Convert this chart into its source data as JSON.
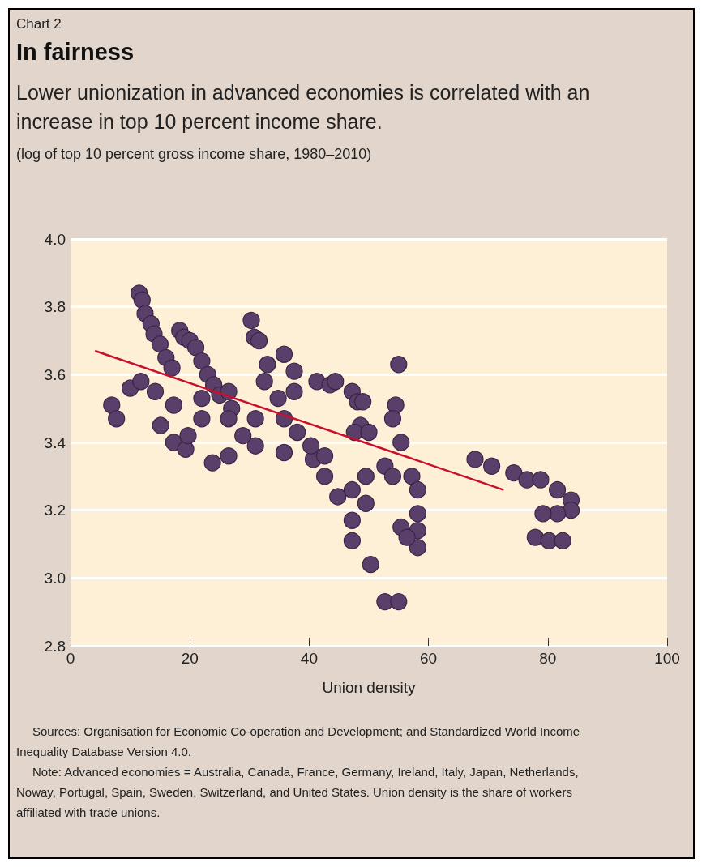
{
  "chart_data": {
    "type": "scatter",
    "title": "In fairness",
    "subtitle": "Lower unionization in advanced economies is correlated with an increase in top 10 percent income share.",
    "ylabel": "(log of top 10 percent gross income share, 1980–2010)",
    "xlabel": "Union density",
    "annotations": [
      "Chart 2",
      "Sources: Organisation for Economic Co-operation and Development; and Standardized World Income Inequality Database Version 4.0.",
      "Note: Advanced economies = Australia, Canada, France, Germany, Ireland, Italy, Japan, Netherlands, Noway, Portugal, Spain, Sweden, Switzerland, and United States. Union density is the share of workers affiliated with trade unions."
    ],
    "xlim": [
      0,
      100
    ],
    "xticks": [
      0,
      20,
      40,
      60,
      80,
      100
    ],
    "ylim": [
      2.8,
      4.0
    ],
    "yticks": [
      2.8,
      {
        "value": 3,
        "label": "3.0"
      },
      3.2,
      3.4,
      3.6,
      3.8,
      {
        "value": 4,
        "label": "4.0"
      }
    ],
    "grid": "y",
    "marker": "circle",
    "series": [
      {
        "color": "#5b3f6b",
        "x": [
          11.5,
          12,
          12.5,
          13.5,
          14,
          15,
          16,
          17,
          18.3,
          19,
          20,
          21,
          22,
          23,
          24,
          25,
          27,
          30.3,
          30.8,
          31.6,
          35.8,
          33,
          32.5,
          37.5,
          37.5,
          34.8,
          41.3,
          43.5,
          44.4,
          47.2,
          48.1,
          49,
          48.6,
          47.6,
          50,
          54.5,
          55,
          54,
          55.4,
          52.7,
          54,
          57.2,
          58.2,
          58.2,
          58.2,
          58.2,
          55.4,
          56.4,
          40.7,
          42.6,
          44.8,
          47.2,
          49.5,
          49.5,
          47.2,
          47.2,
          50.3,
          52.7,
          55,
          67.8,
          70.6,
          74.3,
          76.5,
          78.8,
          81.6,
          83.9,
          83.9,
          81.6,
          79.2,
          77.9,
          80.2,
          82.5,
          6.9,
          7.7,
          10,
          11.8,
          14.2,
          17.3,
          19.3,
          23.8,
          26.5,
          31,
          35.8,
          40.3,
          42.6,
          17.3,
          22,
          26.5,
          31,
          35.8,
          22,
          26.5,
          15.1,
          19.7,
          28.9,
          38
        ],
        "values": [
          3.84,
          3.82,
          3.78,
          3.75,
          3.72,
          3.69,
          3.65,
          3.62,
          3.73,
          3.71,
          3.7,
          3.68,
          3.64,
          3.6,
          3.57,
          3.54,
          3.5,
          3.76,
          3.71,
          3.7,
          3.66,
          3.63,
          3.58,
          3.61,
          3.55,
          3.53,
          3.58,
          3.57,
          3.58,
          3.55,
          3.52,
          3.52,
          3.45,
          3.43,
          3.43,
          3.51,
          3.63,
          3.47,
          3.4,
          3.33,
          3.3,
          3.3,
          3.26,
          3.19,
          3.14,
          3.09,
          3.15,
          3.12,
          3.35,
          3.3,
          3.24,
          3.26,
          3.3,
          3.22,
          3.17,
          3.11,
          3.04,
          2.93,
          2.93,
          3.35,
          3.33,
          3.31,
          3.29,
          3.29,
          3.26,
          3.23,
          3.2,
          3.19,
          3.19,
          3.12,
          3.11,
          3.11,
          3.51,
          3.47,
          3.56,
          3.58,
          3.55,
          3.4,
          3.38,
          3.34,
          3.36,
          3.39,
          3.37,
          3.39,
          3.36,
          3.51,
          3.47,
          3.47,
          3.47,
          3.47,
          3.53,
          3.55,
          3.45,
          3.42,
          3.42,
          3.43
        ]
      },
      {
        "type": "line",
        "color": "#c8102e",
        "x": [
          4.1,
          72.6
        ],
        "values": [
          3.67,
          3.26
        ],
        "marker": "none"
      }
    ]
  }
}
